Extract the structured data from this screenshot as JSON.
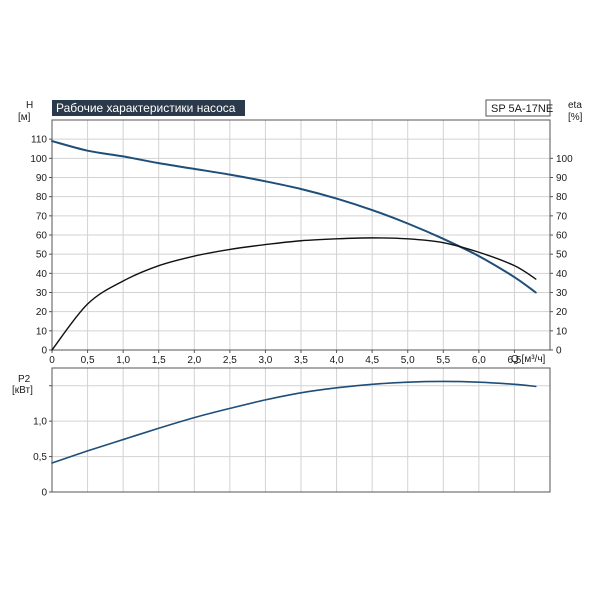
{
  "title": "Рабочие характеристики насоса",
  "model": "SP 5A-17NE",
  "colors": {
    "head_curve": "#1f4e79",
    "efficiency_curve": "#111111",
    "power_curve": "#1f4e79",
    "title_bg": "#2b3a4a",
    "grid": "#d2d2d2",
    "axes": "#555555"
  },
  "chart_data": [
    {
      "type": "line",
      "title": "Рабочие характеристики насоса",
      "xlabel": "Q [м³/ч]",
      "xlim": [
        0,
        7
      ],
      "x_ticks": [
        0,
        0.5,
        1.0,
        1.5,
        2.0,
        2.5,
        3.0,
        3.5,
        4.0,
        4.5,
        5.0,
        5.5,
        6.0,
        6.5
      ],
      "x_tick_labels": [
        "0",
        "0,5",
        "1,0",
        "1,5",
        "2,0",
        "2,5",
        "3,0",
        "3,5",
        "4,0",
        "4,5",
        "5,0",
        "5,5",
        "6,0",
        "6,5"
      ],
      "ylabel": "H",
      "ylabel_unit": "[м]",
      "ylim": [
        0,
        120
      ],
      "y_ticks": [
        0,
        10,
        20,
        30,
        40,
        50,
        60,
        70,
        80,
        90,
        100,
        110
      ],
      "y2label": "eta",
      "y2label_unit": "[%]",
      "y2lim": [
        0,
        120
      ],
      "y2_ticks": [
        0,
        10,
        20,
        30,
        40,
        50,
        60,
        70,
        80,
        90,
        100
      ],
      "grid": true,
      "series": [
        {
          "axis": "left",
          "x": [
            0,
            0.5,
            1.0,
            1.5,
            2.0,
            2.5,
            3.0,
            3.5,
            4.0,
            4.5,
            5.0,
            5.5,
            6.0,
            6.5,
            6.8
          ],
          "values": [
            109,
            104,
            101,
            97.5,
            94.5,
            91.5,
            88,
            84,
            79,
            73,
            66,
            58,
            49,
            38,
            30
          ]
        },
        {
          "axis": "right",
          "x": [
            0,
            0.5,
            1.0,
            1.5,
            2.0,
            2.5,
            3.0,
            3.5,
            4.0,
            4.5,
            5.0,
            5.5,
            6.0,
            6.5,
            6.8
          ],
          "values": [
            0,
            24,
            36,
            44,
            49,
            52.5,
            55,
            57,
            58,
            58.5,
            58,
            56,
            51,
            44,
            37
          ]
        }
      ]
    },
    {
      "type": "line",
      "xlim": [
        0,
        7
      ],
      "ylabel": "P2",
      "ylabel_unit": "[кВт]",
      "ylim": [
        0,
        1.75
      ],
      "y_ticks": [
        0,
        0.5,
        1.0
      ],
      "y_tick_labels": [
        "0",
        "0,5",
        "1,0"
      ],
      "grid": true,
      "series": [
        {
          "x": [
            0,
            0.5,
            1.0,
            1.5,
            2.0,
            2.5,
            3.0,
            3.5,
            4.0,
            4.5,
            5.0,
            5.5,
            6.0,
            6.5,
            6.8
          ],
          "values": [
            0.41,
            0.58,
            0.74,
            0.9,
            1.05,
            1.18,
            1.3,
            1.4,
            1.47,
            1.52,
            1.55,
            1.56,
            1.55,
            1.52,
            1.49
          ]
        }
      ]
    }
  ]
}
